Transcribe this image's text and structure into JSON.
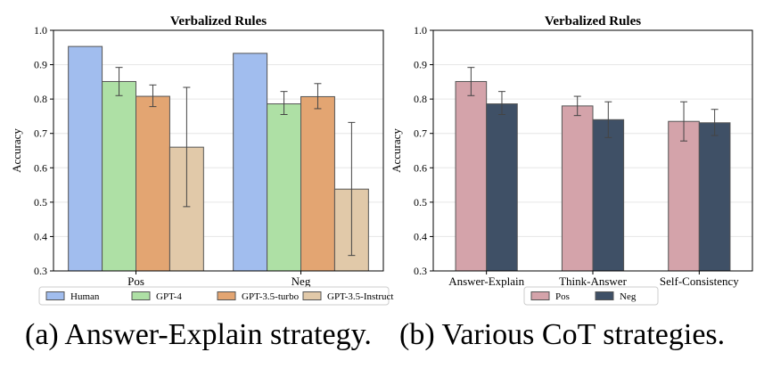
{
  "chart_data": [
    {
      "type": "bar",
      "title": "Verbalized Rules",
      "xlabel": "",
      "ylabel": "Accuracy",
      "ylim": [
        0.3,
        1.0
      ],
      "yticks": [
        "0.3",
        "0.4",
        "0.5",
        "0.6",
        "0.7",
        "0.8",
        "0.9",
        "1.0"
      ],
      "grid": true,
      "legend_position": "bottom",
      "categories": [
        "Pos",
        "Neg"
      ],
      "series": [
        {
          "name": "Human",
          "color": "#a1bdee",
          "values": [
            0.953,
            0.933
          ],
          "errors_low": [
            null,
            null
          ],
          "errors_high": [
            null,
            null
          ]
        },
        {
          "name": "GPT-4",
          "color": "#aee0a5",
          "values": [
            0.851,
            0.786
          ],
          "errors_low": [
            0.81,
            0.755
          ],
          "errors_high": [
            0.892,
            0.822
          ]
        },
        {
          "name": "GPT-3.5-turbo",
          "color": "#e3a572",
          "values": [
            0.808,
            0.807
          ],
          "errors_low": [
            0.778,
            0.772
          ],
          "errors_high": [
            0.841,
            0.845
          ]
        },
        {
          "name": "GPT-3.5-Instruct",
          "color": "#e1c9a9",
          "values": [
            0.66,
            0.538
          ],
          "errors_low": [
            0.487,
            0.345
          ],
          "errors_high": [
            0.834,
            0.732
          ]
        }
      ]
    },
    {
      "type": "bar",
      "title": "Verbalized Rules",
      "xlabel": "",
      "ylabel": "Accuracy",
      "ylim": [
        0.3,
        1.0
      ],
      "yticks": [
        "0.3",
        "0.4",
        "0.5",
        "0.6",
        "0.7",
        "0.8",
        "0.9",
        "1.0"
      ],
      "grid": true,
      "legend_position": "bottom",
      "categories": [
        "Answer-Explain",
        "Think-Answer",
        "Self-Consistency"
      ],
      "series": [
        {
          "name": "Pos",
          "color": "#d4a3aa",
          "values": [
            0.851,
            0.78,
            0.735
          ],
          "errors_low": [
            0.81,
            0.752,
            0.678
          ],
          "errors_high": [
            0.892,
            0.808,
            0.792
          ]
        },
        {
          "name": "Neg",
          "color": "#3f5066",
          "values": [
            0.786,
            0.74,
            0.731
          ],
          "errors_low": [
            0.755,
            0.688,
            0.694
          ],
          "errors_high": [
            0.822,
            0.792,
            0.77
          ]
        }
      ]
    }
  ],
  "captions": {
    "a": "(a) Answer-Explain strategy.",
    "b": "(b) Various CoT strategies."
  }
}
